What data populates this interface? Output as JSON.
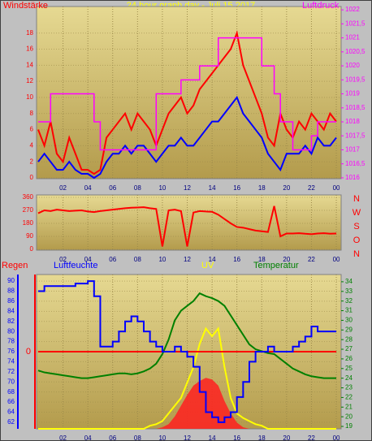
{
  "chart_data": [
    {
      "type": "line",
      "title": "24 hour graph day - Juli 15 2017",
      "x": [
        0,
        0.5,
        1,
        1.5,
        2,
        2.5,
        3,
        3.5,
        4,
        4.5,
        5,
        5.5,
        6,
        6.5,
        7,
        7.5,
        8,
        8.5,
        9,
        9.5,
        10,
        10.5,
        11,
        11.5,
        12,
        12.5,
        13,
        13.5,
        14,
        14.5,
        15,
        15.5,
        16,
        16.5,
        17,
        17.5,
        18,
        18.5,
        19,
        19.5,
        20,
        20.5,
        21,
        21.5,
        22,
        22.5,
        23,
        23.5,
        24
      ],
      "xlim": [
        -0.13,
        24.39
      ],
      "xticks": [
        {
          "value": 2,
          "label": "02"
        },
        {
          "value": 4,
          "label": "04"
        },
        {
          "value": 6,
          "label": "06"
        },
        {
          "value": 8,
          "label": "08"
        },
        10,
        12,
        14,
        16,
        18,
        20,
        22,
        {
          "value": 24,
          "label": "00"
        }
      ],
      "ylim": [
        -0.1,
        21.3
      ],
      "yticks": [
        0,
        2,
        4,
        6,
        8,
        10,
        12,
        14,
        16,
        18
      ],
      "y2lim": [
        1015.97,
        1022.12
      ],
      "y2ticks": [
        1016,
        {
          "value": 1016.5,
          "label": "1016,5"
        },
        1017,
        {
          "value": 1017.5,
          "label": "1017,5"
        },
        1018,
        {
          "value": 1018.5,
          "label": "1018,5"
        },
        1019,
        {
          "value": 1019.5,
          "label": "1019,5"
        },
        1020,
        {
          "value": 1020.5,
          "label": "1020,5"
        },
        1021,
        {
          "value": 1021.5,
          "label": "1021,5"
        },
        1022
      ],
      "grid": true,
      "series": [
        {
          "name": "Windstärke",
          "color": "#ff0000",
          "values": [
            6,
            4,
            7,
            3,
            2,
            5,
            3,
            1,
            1,
            0.5,
            1,
            5,
            6,
            7,
            8,
            6,
            8,
            7,
            6,
            4,
            6,
            8,
            9,
            10,
            8,
            9,
            11,
            12,
            13,
            14,
            15,
            16,
            18,
            14,
            12,
            10,
            8,
            5,
            4,
            8,
            6,
            5,
            7,
            6,
            8,
            7,
            6,
            8,
            7
          ]
        },
        {
          "color": "#0000ff",
          "values": [
            2,
            3,
            2,
            1,
            1,
            2,
            1,
            0.5,
            0.5,
            0,
            0.5,
            2,
            3,
            3,
            4,
            3,
            4,
            4,
            3,
            2,
            3,
            4,
            4,
            5,
            4,
            4,
            5,
            6,
            7,
            7,
            8,
            9,
            10,
            8,
            7,
            6,
            5,
            3,
            2,
            1,
            3,
            3,
            3,
            4,
            3,
            5,
            4,
            4,
            5
          ]
        },
        {
          "name": "Luftdruck",
          "color": "#ff00ff",
          "axis": "y2",
          "step": true,
          "values": [
            1018,
            1018,
            1019,
            1019,
            1019,
            1019,
            1019,
            1019,
            1019,
            1018,
            1017,
            1017,
            1017,
            1017,
            1017,
            1017,
            1017,
            1017,
            1017,
            1019,
            1019,
            1019,
            1019,
            1019.5,
            1019.5,
            1019.5,
            1020,
            1020,
            1020,
            1021,
            1021,
            1021,
            1021,
            1021,
            1021,
            1021,
            1020,
            1020,
            1019,
            1018,
            1018,
            1017,
            1017,
            1017,
            1017.5,
            1018,
            1018,
            1018,
            1018
          ]
        }
      ]
    },
    {
      "type": "line",
      "x": [
        0,
        0.5,
        1,
        1.5,
        2,
        2.5,
        3,
        3.5,
        4,
        4.5,
        5,
        5.5,
        6,
        6.5,
        7,
        7.5,
        8,
        8.5,
        9,
        9.5,
        10,
        10.5,
        11,
        11.5,
        12,
        12.5,
        13,
        13.5,
        14,
        14.5,
        15,
        15.5,
        16,
        16.5,
        17,
        17.5,
        18,
        18.5,
        19,
        19.5,
        20,
        20.5,
        21,
        21.5,
        22,
        22.5,
        23,
        23.5,
        24
      ],
      "xlim": [
        -0.13,
        24.39
      ],
      "xticks": [
        {
          "value": 2,
          "label": "02"
        },
        {
          "value": 4,
          "label": "04"
        },
        {
          "value": 6,
          "label": "06"
        },
        {
          "value": 8,
          "label": "08"
        },
        10,
        12,
        14,
        16,
        18,
        20,
        22,
        {
          "value": 24,
          "label": "00"
        }
      ],
      "ylim": [
        -5.6,
        376.9
      ],
      "yticks": [
        0,
        90,
        180,
        270,
        360
      ],
      "grid": true,
      "annotations": [
        "N",
        "W",
        "S",
        "O",
        "N"
      ],
      "series": [
        {
          "color": "#ff0000",
          "values": [
            250,
            270,
            265,
            275,
            270,
            265,
            268,
            270,
            262,
            258,
            265,
            270,
            275,
            280,
            285,
            288,
            290,
            292,
            285,
            280,
            20,
            270,
            275,
            265,
            20,
            255,
            265,
            262,
            260,
            240,
            210,
            180,
            155,
            150,
            140,
            130,
            125,
            120,
            300,
            90,
            110,
            110,
            112,
            108,
            105,
            110,
            112,
            108,
            110
          ]
        }
      ]
    },
    {
      "type": "line",
      "x": [
        0,
        0.5,
        1,
        1.5,
        2,
        2.5,
        3,
        3.5,
        4,
        4.5,
        5,
        5.5,
        6,
        6.5,
        7,
        7.5,
        8,
        8.5,
        9,
        9.5,
        10,
        10.5,
        11,
        11.5,
        12,
        12.5,
        13,
        13.5,
        14,
        14.5,
        15,
        15.5,
        16,
        16.5,
        17,
        17.5,
        18,
        18.5,
        19,
        19.5,
        20,
        20.5,
        21,
        21.5,
        22,
        22.5,
        23,
        23.5,
        24
      ],
      "xlim": [
        -0.13,
        24.39
      ],
      "xticks": [
        {
          "value": 2,
          "label": "02"
        },
        {
          "value": 4,
          "label": "04"
        },
        {
          "value": 6,
          "label": "06"
        },
        {
          "value": 8,
          "label": "08"
        },
        10,
        12,
        14,
        16,
        18,
        20,
        22,
        {
          "value": 24,
          "label": "00"
        }
      ],
      "ylim": [
        60.7,
        91.3
      ],
      "yticks": [
        62,
        64,
        66,
        68,
        70,
        72,
        74,
        76,
        78,
        80,
        82,
        84,
        86,
        88,
        90
      ],
      "y2lim": [
        18.75,
        34.75
      ],
      "y2ticks": [
        19,
        20,
        21,
        22,
        23,
        24,
        25,
        26,
        27,
        28,
        29,
        30,
        31,
        32,
        33,
        34
      ],
      "grid": true,
      "series": [
        {
          "color": "#ff2020",
          "area": true,
          "ylim": [
            0,
            100
          ],
          "values": [
            0,
            0,
            0,
            0,
            0,
            0,
            0,
            0,
            0,
            0,
            0,
            0,
            0,
            0,
            0,
            0,
            0,
            0,
            0,
            0,
            1,
            3,
            8,
            15,
            22,
            28,
            31,
            33,
            32,
            28,
            18,
            10,
            4,
            1,
            0,
            0,
            0,
            0,
            0,
            0,
            0,
            0,
            0,
            0,
            0,
            0,
            0,
            0,
            0
          ]
        },
        {
          "name": "UV",
          "color": "#ffff00",
          "ylim": [
            0,
            10
          ],
          "values": [
            0,
            0,
            0,
            0,
            0,
            0,
            0,
            0,
            0,
            0,
            0,
            0,
            0,
            0,
            0,
            0,
            0,
            0,
            0.2,
            0.3,
            0.5,
            1,
            1.5,
            2,
            3,
            4,
            5.5,
            6.5,
            6,
            6.5,
            4,
            2,
            1,
            0.7,
            0.5,
            0.3,
            0.2,
            0,
            0,
            0,
            0,
            0,
            0,
            0,
            0,
            0,
            0,
            0,
            0
          ]
        },
        {
          "name": "Regen",
          "color": "#ff0000",
          "ylim": [
            -1,
            1
          ],
          "yticks": [
            0
          ],
          "values": [
            0,
            0,
            0,
            0,
            0,
            0,
            0,
            0,
            0,
            0,
            0,
            0,
            0,
            0,
            0,
            0,
            0,
            0,
            0,
            0,
            0,
            0,
            0,
            0,
            0,
            0,
            0,
            0,
            0,
            0,
            0,
            0,
            0,
            0,
            0,
            0,
            0,
            0,
            0,
            0,
            0,
            0,
            0,
            0,
            0,
            0,
            0,
            0,
            0
          ]
        },
        {
          "name": "Temperatur",
          "color": "#008000",
          "axis": "y2",
          "values": [
            24.8,
            24.6,
            24.5,
            24.4,
            24.3,
            24.2,
            24.1,
            24,
            24,
            24.1,
            24.2,
            24.3,
            24.4,
            24.5,
            24.5,
            24.4,
            24.5,
            24.7,
            25,
            25.5,
            26.5,
            28,
            30,
            31,
            31.5,
            32,
            32.8,
            32.5,
            32.3,
            32,
            31.5,
            30.5,
            29.5,
            28.5,
            27.5,
            27,
            26.8,
            26.6,
            26.5,
            26,
            25.5,
            25,
            24.7,
            24.4,
            24.2,
            24.1,
            24,
            24,
            24
          ]
        },
        {
          "name": "Luftfeuchte",
          "color": "#0000ff",
          "step": true,
          "values": [
            88,
            89,
            89,
            89,
            89,
            89,
            89.5,
            89.5,
            90,
            87,
            77,
            77,
            78,
            80,
            82,
            83,
            82,
            80,
            78,
            77,
            76,
            76,
            77,
            76,
            75,
            73,
            68,
            64,
            63,
            62,
            63,
            64,
            67,
            70,
            74,
            76,
            76,
            77,
            76,
            76,
            76,
            77,
            78,
            79,
            81,
            80,
            80,
            80,
            80
          ]
        }
      ]
    }
  ]
}
